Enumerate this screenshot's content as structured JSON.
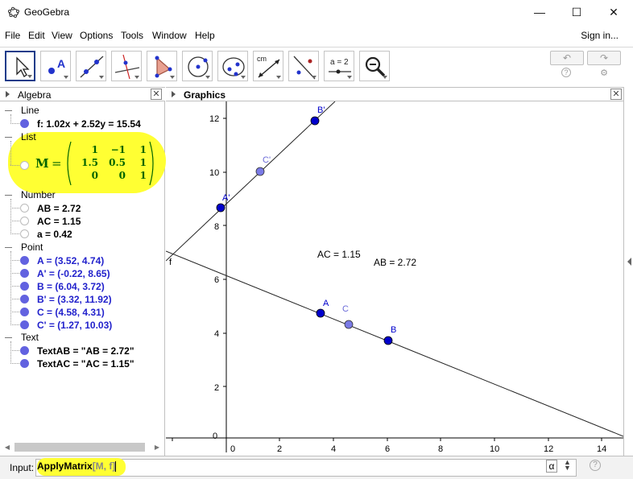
{
  "window": {
    "title": "GeoGebra",
    "minimize": "—",
    "maximize": "☐",
    "close": "✕"
  },
  "menu": {
    "items": [
      "File",
      "Edit",
      "View",
      "Options",
      "Tools",
      "Window",
      "Help"
    ],
    "signin": "Sign in..."
  },
  "toolbar": {
    "tools": [
      "move-tool",
      "point-tool",
      "line-tool",
      "perpendicular-tool",
      "polygon-tool",
      "circle-tool",
      "conic-tool",
      "measure-tool",
      "reflect-tool",
      "slider-tool",
      "zoom-tool"
    ],
    "slider_label": "a = 2",
    "measure_label": "cm",
    "undo": "↶",
    "redo": "↷"
  },
  "algebra": {
    "title": "Algebra",
    "categories": {
      "line": "Line",
      "list": "List",
      "number": "Number",
      "point": "Point",
      "text": "Text"
    },
    "line_items": [
      "f: 1.02x + 2.52y = 15.54"
    ],
    "matrix": {
      "name": "M",
      "rows": [
        [
          "1",
          "−1",
          "1"
        ],
        [
          "1.5",
          "0.5",
          "1"
        ],
        [
          "0",
          "0",
          "1"
        ]
      ]
    },
    "number_items": [
      "AB = 2.72",
      "AC = 1.15",
      "a = 0.42"
    ],
    "point_items": [
      "A = (3.52, 4.74)",
      "A' = (-0.22, 8.65)",
      "B = (6.04, 3.72)",
      "B' = (3.32, 11.92)",
      "C = (4.58, 4.31)",
      "C' = (1.27, 10.03)"
    ],
    "text_items": [
      "TextAB = \"AB = 2.72\"",
      "TextAC = \"AC = 1.15\""
    ]
  },
  "graphics": {
    "title": "Graphics",
    "x_ticks": [
      "0",
      "2",
      "4",
      "6",
      "8",
      "10",
      "12",
      "14"
    ],
    "y_ticks": [
      "0",
      "2",
      "4",
      "6",
      "8",
      "10",
      "12"
    ],
    "line_label": "f",
    "points": {
      "A": "A",
      "A_prime": "A'",
      "B": "B",
      "B_prime": "B'",
      "C": "C",
      "C_prime": "C'"
    },
    "text_ac": "AC = 1.15",
    "text_ab": "AB = 2.72",
    "colors": {
      "point_dark": "#0000cc",
      "point_light": "#7a7ae6",
      "label_dark": "#0000cc",
      "label_light": "#6a6ad8"
    }
  },
  "input": {
    "label": "Input:",
    "command": "ApplyMatrix",
    "args": "[M, f]",
    "alpha": "α",
    "help": "?"
  },
  "highlight_color": "#ffff33"
}
